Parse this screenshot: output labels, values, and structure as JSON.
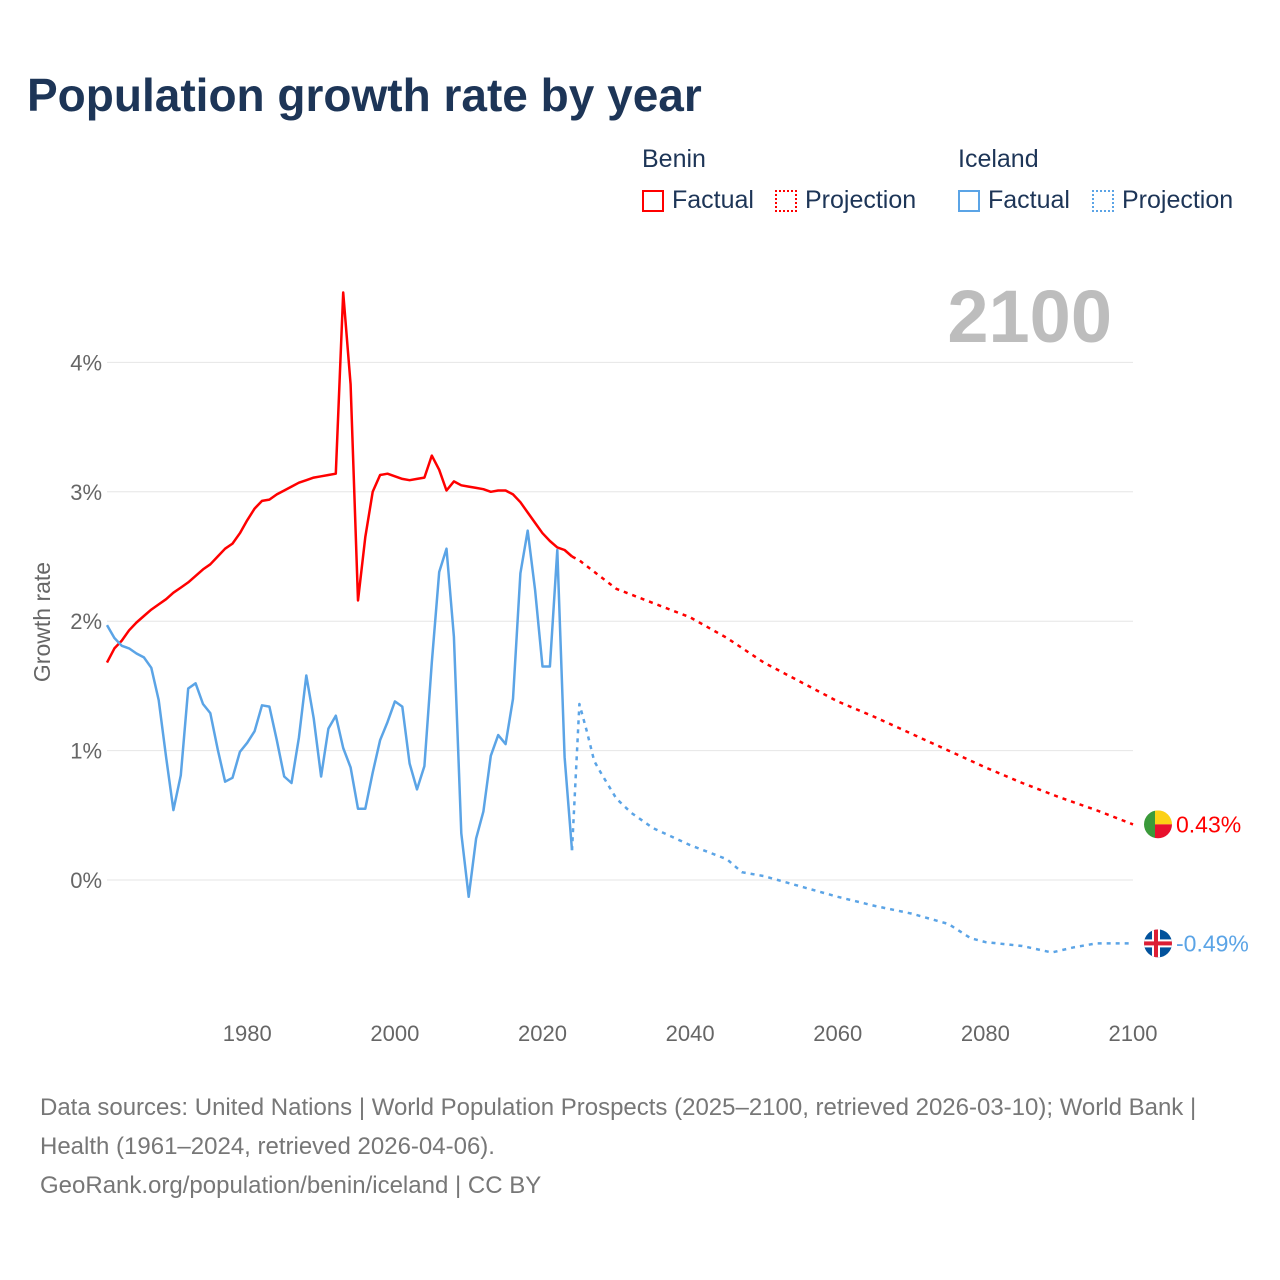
{
  "title": "Population growth rate by year",
  "legend": {
    "groups": [
      {
        "name": "Benin",
        "color": "#ff0000",
        "factual_label": "Factual",
        "projection_label": "Projection"
      },
      {
        "name": "Iceland",
        "color": "#5ba4e6",
        "factual_label": "Factual",
        "projection_label": "Projection"
      }
    ]
  },
  "year_overlay": "2100",
  "footer": {
    "sources": "Data sources: United Nations | World Population Prospects (2025–2100, retrieved 2026-03-10); World Bank | Health (1961–2024, retrieved 2026-04-06).",
    "credit": "GeoRank.org/population/benin/iceland | CC BY"
  },
  "chart_data": {
    "type": "line",
    "title": "Population growth rate by year",
    "xlabel": "",
    "ylabel": "Growth rate",
    "xlim": [
      1961,
      2100
    ],
    "ylim": [
      -1.0,
      4.6
    ],
    "x_ticks": [
      1980,
      2000,
      2020,
      2040,
      2060,
      2080,
      2100
    ],
    "x_tick_labels": [
      "1980",
      "2000",
      "2020",
      "2040",
      "2060",
      "2080",
      "2100"
    ],
    "y_ticks": [
      0,
      1,
      2,
      3,
      4
    ],
    "y_tick_labels": [
      "0%",
      "1%",
      "2%",
      "3%",
      "4%"
    ],
    "grid": true,
    "legend_position": "top-right",
    "series": [
      {
        "name": "Benin",
        "kind": "factual",
        "color": "#ff0000",
        "x": [
          1961,
          1962,
          1963,
          1964,
          1965,
          1966,
          1967,
          1968,
          1969,
          1970,
          1971,
          1972,
          1973,
          1974,
          1975,
          1976,
          1977,
          1978,
          1979,
          1980,
          1981,
          1982,
          1983,
          1984,
          1985,
          1986,
          1987,
          1988,
          1989,
          1990,
          1991,
          1992,
          1993,
          1994,
          1995,
          1996,
          1997,
          1998,
          1999,
          2000,
          2001,
          2002,
          2003,
          2004,
          2005,
          2006,
          2007,
          2008,
          2009,
          2010,
          2011,
          2012,
          2013,
          2014,
          2015,
          2016,
          2017,
          2018,
          2019,
          2020,
          2021,
          2022,
          2023,
          2024
        ],
        "y": [
          1.68,
          1.79,
          1.85,
          1.93,
          1.99,
          2.04,
          2.09,
          2.13,
          2.17,
          2.22,
          2.26,
          2.3,
          2.35,
          2.4,
          2.44,
          2.5,
          2.56,
          2.6,
          2.68,
          2.78,
          2.87,
          2.93,
          2.94,
          2.98,
          3.01,
          3.04,
          3.07,
          3.09,
          3.11,
          3.12,
          3.13,
          3.14,
          4.54,
          3.83,
          2.16,
          2.65,
          3.0,
          3.13,
          3.14,
          3.12,
          3.1,
          3.09,
          3.1,
          3.11,
          3.28,
          3.17,
          3.01,
          3.08,
          3.05,
          3.04,
          3.03,
          3.02,
          3.0,
          3.01,
          3.01,
          2.98,
          2.92,
          2.84,
          2.76,
          2.68,
          2.62,
          2.57,
          2.55,
          2.5
        ]
      },
      {
        "name": "Benin",
        "kind": "projection",
        "color": "#ff0000",
        "x": [
          2024,
          2025,
          2030,
          2035,
          2040,
          2045,
          2050,
          2055,
          2060,
          2065,
          2070,
          2075,
          2080,
          2085,
          2090,
          2095,
          2100
        ],
        "y": [
          2.5,
          2.47,
          2.25,
          2.14,
          2.03,
          1.87,
          1.68,
          1.53,
          1.38,
          1.26,
          1.13,
          1.0,
          0.87,
          0.75,
          0.64,
          0.54,
          0.43
        ]
      },
      {
        "name": "Iceland",
        "kind": "factual",
        "color": "#5ba4e6",
        "x": [
          1961,
          1962,
          1963,
          1964,
          1965,
          1966,
          1967,
          1968,
          1969,
          1970,
          1971,
          1972,
          1973,
          1974,
          1975,
          1976,
          1977,
          1978,
          1979,
          1980,
          1981,
          1982,
          1983,
          1984,
          1985,
          1986,
          1987,
          1988,
          1989,
          1990,
          1991,
          1992,
          1993,
          1994,
          1995,
          1996,
          1997,
          1998,
          1999,
          2000,
          2001,
          2002,
          2003,
          2004,
          2005,
          2006,
          2007,
          2008,
          2009,
          2010,
          2011,
          2012,
          2013,
          2014,
          2015,
          2016,
          2017,
          2018,
          2019,
          2020,
          2021,
          2022,
          2023,
          2024
        ],
        "y": [
          1.97,
          1.87,
          1.81,
          1.79,
          1.75,
          1.72,
          1.64,
          1.39,
          0.95,
          0.54,
          0.81,
          1.48,
          1.52,
          1.36,
          1.29,
          1.01,
          0.76,
          0.79,
          0.99,
          1.06,
          1.15,
          1.35,
          1.34,
          1.08,
          0.8,
          0.75,
          1.1,
          1.58,
          1.25,
          0.8,
          1.17,
          1.27,
          1.02,
          0.87,
          0.55,
          0.55,
          0.83,
          1.08,
          1.22,
          1.38,
          1.34,
          0.9,
          0.7,
          0.88,
          1.68,
          2.38,
          2.56,
          1.88,
          0.36,
          -0.13,
          0.32,
          0.53,
          0.96,
          1.12,
          1.05,
          1.4,
          2.37,
          2.7,
          2.24,
          1.65,
          1.65,
          2.55,
          0.95,
          0.23
        ]
      },
      {
        "name": "Iceland",
        "kind": "projection",
        "color": "#5ba4e6",
        "x": [
          2024,
          2025,
          2026,
          2027,
          2028,
          2030,
          2032,
          2035,
          2040,
          2045,
          2047,
          2050,
          2055,
          2060,
          2065,
          2070,
          2075,
          2078,
          2080,
          2085,
          2089,
          2092,
          2095,
          2100
        ],
        "y": [
          0.23,
          1.36,
          1.15,
          0.92,
          0.82,
          0.63,
          0.52,
          0.4,
          0.27,
          0.16,
          0.06,
          0.03,
          -0.05,
          -0.13,
          -0.2,
          -0.26,
          -0.34,
          -0.45,
          -0.48,
          -0.51,
          -0.56,
          -0.52,
          -0.49,
          -0.49
        ]
      }
    ],
    "end_labels": [
      {
        "name": "Benin",
        "value_label": "0.43%",
        "color": "#ff0000"
      },
      {
        "name": "Iceland",
        "value_label": "-0.49%",
        "color": "#5ba4e6"
      }
    ]
  }
}
